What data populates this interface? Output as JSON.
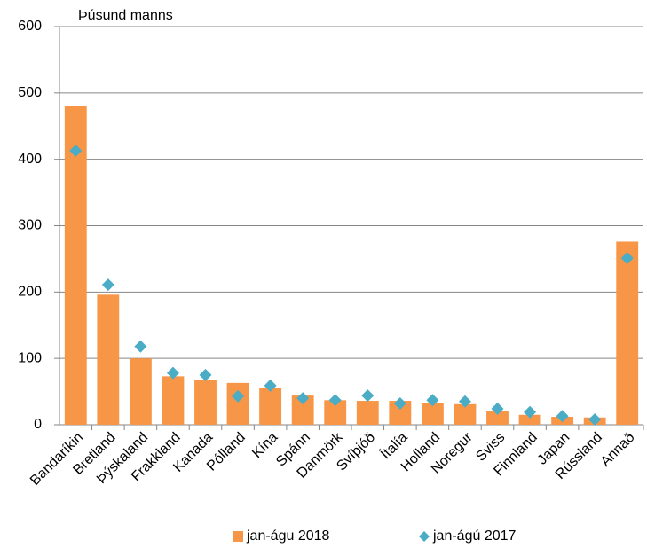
{
  "chart_data": {
    "type": "bar",
    "y_label": "Þúsund manns",
    "categories": [
      "Bandaríkin",
      "Bretland",
      "Þýskaland",
      "Frakkland",
      "Kanada",
      "Pólland",
      "Kína",
      "Spánn",
      "Danmörk",
      "Svíþjóð",
      "Ítalía",
      "Holland",
      "Noregur",
      "Sviss",
      "Finnland",
      "Japan",
      "Rússland",
      "Annað"
    ],
    "series": [
      {
        "name": "jan-águ 2018",
        "color": "#f79646",
        "mark": "bar",
        "values": [
          481,
          196,
          100,
          73,
          68,
          63,
          55,
          44,
          37,
          36,
          36,
          33,
          31,
          20,
          15,
          12,
          11,
          276
        ]
      },
      {
        "name": "jan-ágú 2017",
        "color": "#4bacc6",
        "mark": "diamond",
        "values": [
          413,
          211,
          118,
          78,
          75,
          43,
          59,
          40,
          37,
          44,
          32,
          37,
          35,
          24,
          19,
          13,
          8,
          251
        ]
      }
    ],
    "ylim": [
      0,
      600
    ],
    "yticks": [
      0,
      100,
      200,
      300,
      400,
      500,
      600
    ],
    "grid": true,
    "legend": "bottom"
  }
}
